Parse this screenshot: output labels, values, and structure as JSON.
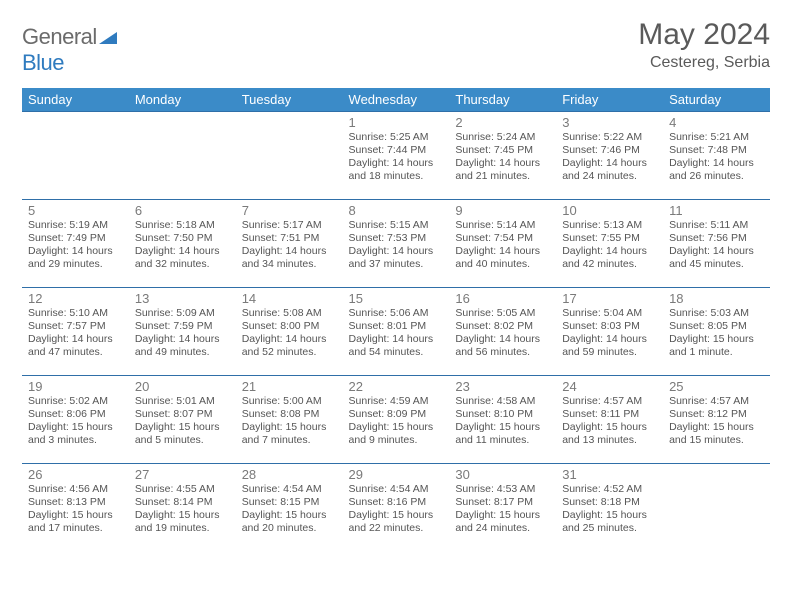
{
  "brand": {
    "word1": "General",
    "word2": "Blue"
  },
  "title": "May 2024",
  "location": "Cestereg, Serbia",
  "colors": {
    "header_bg": "#3b8bc8",
    "header_text": "#ffffff",
    "rule": "#2f6fa8",
    "daynum": "#7a7a7a",
    "body_text": "#555555",
    "title_text": "#5a5a5a",
    "logo_gray": "#6b6b6b",
    "logo_blue": "#2f7bbf"
  },
  "weekdays": [
    "Sunday",
    "Monday",
    "Tuesday",
    "Wednesday",
    "Thursday",
    "Friday",
    "Saturday"
  ],
  "weeks": [
    [
      null,
      null,
      null,
      {
        "n": "1",
        "sr": "5:25 AM",
        "ss": "7:44 PM",
        "dl": "14 hours and 18 minutes."
      },
      {
        "n": "2",
        "sr": "5:24 AM",
        "ss": "7:45 PM",
        "dl": "14 hours and 21 minutes."
      },
      {
        "n": "3",
        "sr": "5:22 AM",
        "ss": "7:46 PM",
        "dl": "14 hours and 24 minutes."
      },
      {
        "n": "4",
        "sr": "5:21 AM",
        "ss": "7:48 PM",
        "dl": "14 hours and 26 minutes."
      }
    ],
    [
      {
        "n": "5",
        "sr": "5:19 AM",
        "ss": "7:49 PM",
        "dl": "14 hours and 29 minutes."
      },
      {
        "n": "6",
        "sr": "5:18 AM",
        "ss": "7:50 PM",
        "dl": "14 hours and 32 minutes."
      },
      {
        "n": "7",
        "sr": "5:17 AM",
        "ss": "7:51 PM",
        "dl": "14 hours and 34 minutes."
      },
      {
        "n": "8",
        "sr": "5:15 AM",
        "ss": "7:53 PM",
        "dl": "14 hours and 37 minutes."
      },
      {
        "n": "9",
        "sr": "5:14 AM",
        "ss": "7:54 PM",
        "dl": "14 hours and 40 minutes."
      },
      {
        "n": "10",
        "sr": "5:13 AM",
        "ss": "7:55 PM",
        "dl": "14 hours and 42 minutes."
      },
      {
        "n": "11",
        "sr": "5:11 AM",
        "ss": "7:56 PM",
        "dl": "14 hours and 45 minutes."
      }
    ],
    [
      {
        "n": "12",
        "sr": "5:10 AM",
        "ss": "7:57 PM",
        "dl": "14 hours and 47 minutes."
      },
      {
        "n": "13",
        "sr": "5:09 AM",
        "ss": "7:59 PM",
        "dl": "14 hours and 49 minutes."
      },
      {
        "n": "14",
        "sr": "5:08 AM",
        "ss": "8:00 PM",
        "dl": "14 hours and 52 minutes."
      },
      {
        "n": "15",
        "sr": "5:06 AM",
        "ss": "8:01 PM",
        "dl": "14 hours and 54 minutes."
      },
      {
        "n": "16",
        "sr": "5:05 AM",
        "ss": "8:02 PM",
        "dl": "14 hours and 56 minutes."
      },
      {
        "n": "17",
        "sr": "5:04 AM",
        "ss": "8:03 PM",
        "dl": "14 hours and 59 minutes."
      },
      {
        "n": "18",
        "sr": "5:03 AM",
        "ss": "8:05 PM",
        "dl": "15 hours and 1 minute."
      }
    ],
    [
      {
        "n": "19",
        "sr": "5:02 AM",
        "ss": "8:06 PM",
        "dl": "15 hours and 3 minutes."
      },
      {
        "n": "20",
        "sr": "5:01 AM",
        "ss": "8:07 PM",
        "dl": "15 hours and 5 minutes."
      },
      {
        "n": "21",
        "sr": "5:00 AM",
        "ss": "8:08 PM",
        "dl": "15 hours and 7 minutes."
      },
      {
        "n": "22",
        "sr": "4:59 AM",
        "ss": "8:09 PM",
        "dl": "15 hours and 9 minutes."
      },
      {
        "n": "23",
        "sr": "4:58 AM",
        "ss": "8:10 PM",
        "dl": "15 hours and 11 minutes."
      },
      {
        "n": "24",
        "sr": "4:57 AM",
        "ss": "8:11 PM",
        "dl": "15 hours and 13 minutes."
      },
      {
        "n": "25",
        "sr": "4:57 AM",
        "ss": "8:12 PM",
        "dl": "15 hours and 15 minutes."
      }
    ],
    [
      {
        "n": "26",
        "sr": "4:56 AM",
        "ss": "8:13 PM",
        "dl": "15 hours and 17 minutes."
      },
      {
        "n": "27",
        "sr": "4:55 AM",
        "ss": "8:14 PM",
        "dl": "15 hours and 19 minutes."
      },
      {
        "n": "28",
        "sr": "4:54 AM",
        "ss": "8:15 PM",
        "dl": "15 hours and 20 minutes."
      },
      {
        "n": "29",
        "sr": "4:54 AM",
        "ss": "8:16 PM",
        "dl": "15 hours and 22 minutes."
      },
      {
        "n": "30",
        "sr": "4:53 AM",
        "ss": "8:17 PM",
        "dl": "15 hours and 24 minutes."
      },
      {
        "n": "31",
        "sr": "4:52 AM",
        "ss": "8:18 PM",
        "dl": "15 hours and 25 minutes."
      },
      null
    ]
  ],
  "labels": {
    "sunrise": "Sunrise:",
    "sunset": "Sunset:",
    "daylight": "Daylight:"
  }
}
